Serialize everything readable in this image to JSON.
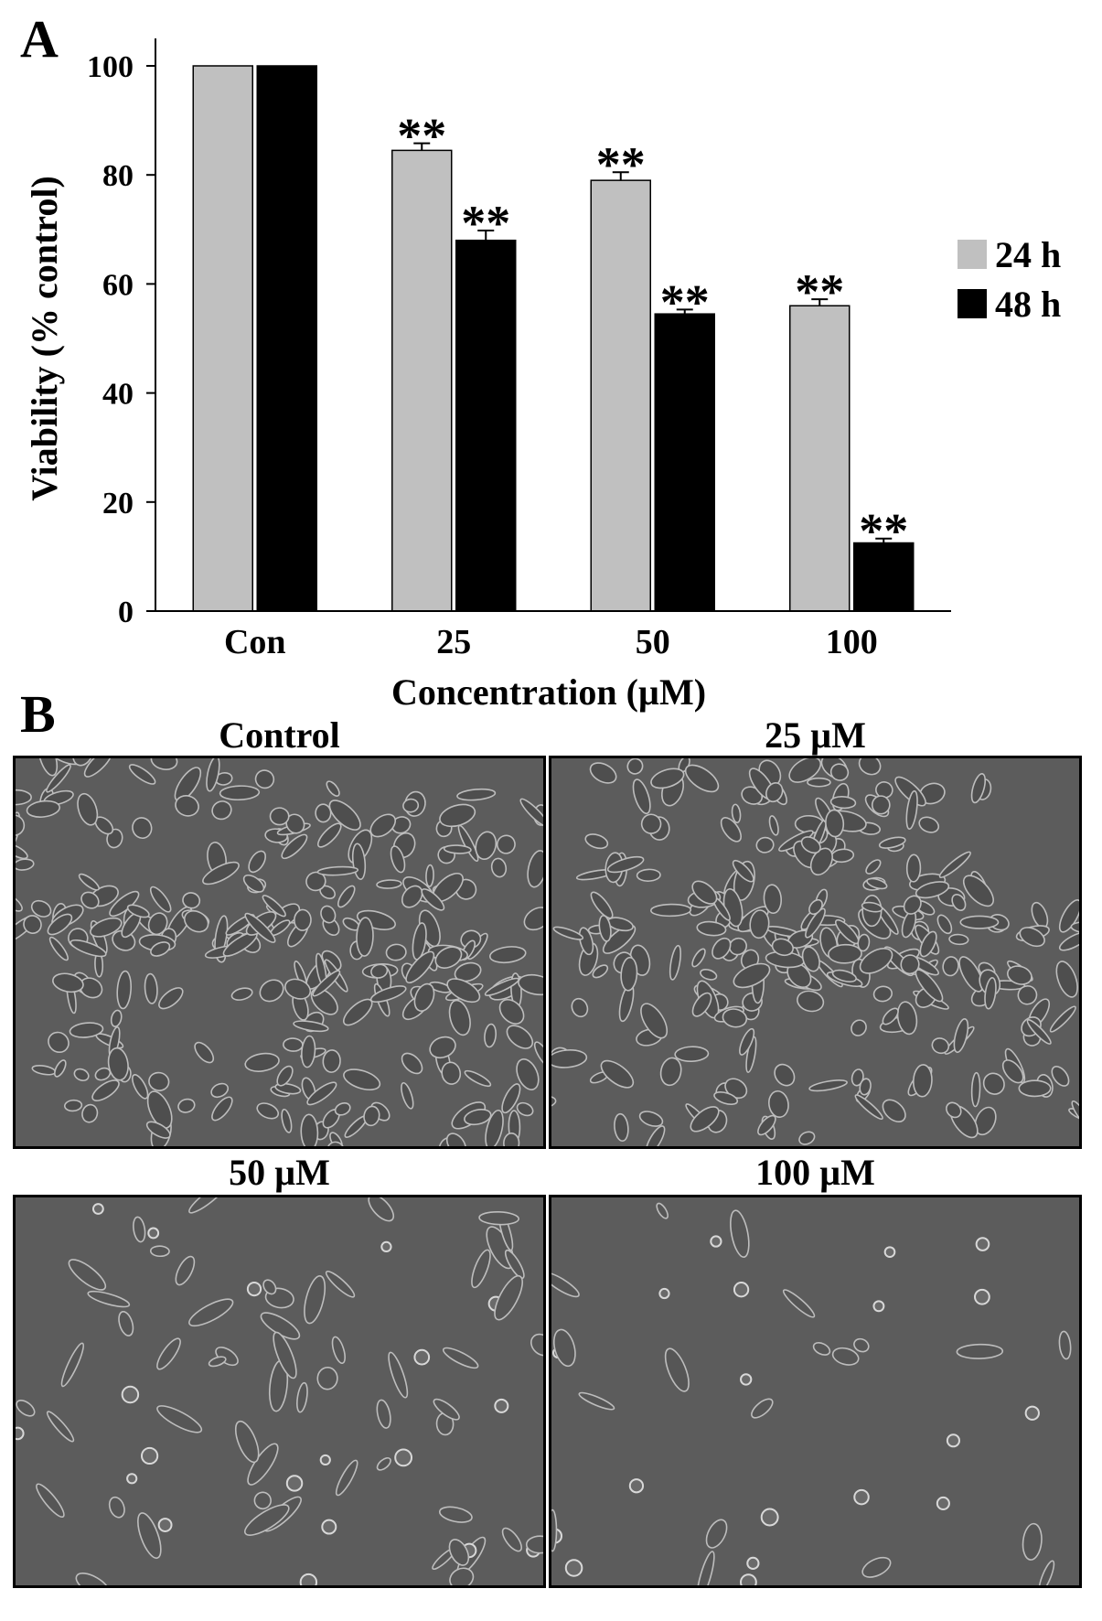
{
  "panels": {
    "a_label": "A",
    "b_label": "B"
  },
  "chart_data": {
    "type": "bar",
    "categories": [
      "Con",
      "25",
      "50",
      "100"
    ],
    "series": [
      {
        "name": "24 h",
        "values": [
          100,
          84.5,
          79,
          56
        ],
        "errors": [
          0,
          1.3,
          1.5,
          1.2
        ],
        "significance": [
          "",
          "**",
          "**",
          "**"
        ],
        "color": "#c0c0c0"
      },
      {
        "name": "48 h",
        "values": [
          100,
          68,
          54.5,
          12.5
        ],
        "errors": [
          0,
          1.8,
          0.8,
          0.8
        ],
        "significance": [
          "",
          "**",
          "**",
          "**"
        ],
        "color": "#000000"
      }
    ],
    "xlabel": "Concentration (µM)",
    "ylabel": "Viability (% control)",
    "ylim": [
      0,
      100
    ],
    "yticks": [
      0,
      20,
      40,
      60,
      80,
      100
    ],
    "grid": false,
    "legend_position": "right"
  },
  "images": [
    {
      "title": "Control",
      "cell_density": "high"
    },
    {
      "title": "25 µM",
      "cell_density": "high"
    },
    {
      "title": "50 µM",
      "cell_density": "medium"
    },
    {
      "title": "100 µM",
      "cell_density": "low"
    }
  ]
}
